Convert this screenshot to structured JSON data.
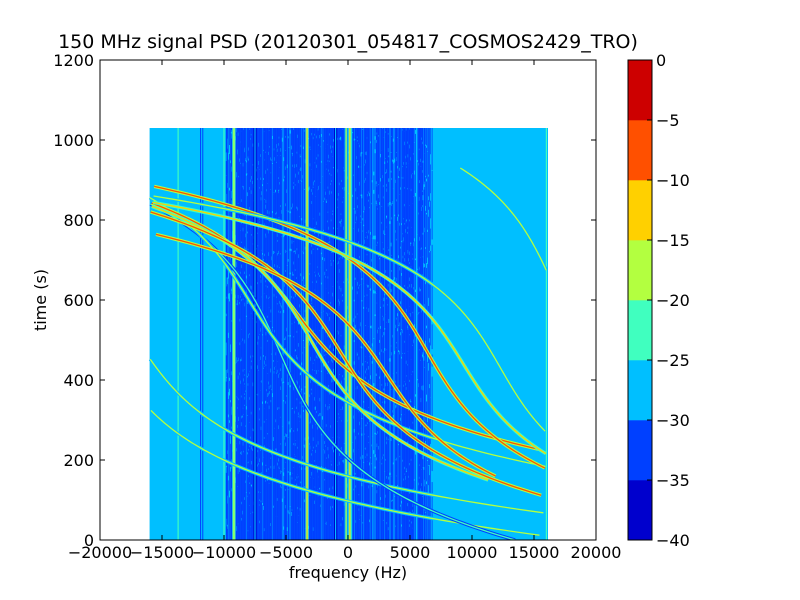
{
  "chart_data": {
    "type": "heatmap",
    "title": "150 MHz signal PSD (20120301_054817_COSMOS2429_TRO)",
    "xlabel": "frequency (Hz)",
    "ylabel": "time (s)",
    "xlim": [
      -20000,
      20000
    ],
    "ylim": [
      0,
      1200
    ],
    "xticks": [
      -20000,
      -15000,
      -10000,
      -5000,
      0,
      5000,
      10000,
      15000,
      20000
    ],
    "xtick_labels": [
      "−20000",
      "−15000",
      "−10000",
      "−5000",
      "0",
      "5000",
      "10000",
      "15000",
      "20000"
    ],
    "yticks": [
      0,
      200,
      400,
      600,
      800,
      1000,
      1200
    ],
    "ytick_labels": [
      "0",
      "200",
      "400",
      "600",
      "800",
      "1000",
      "1200"
    ],
    "data_extent": {
      "x": [
        -16000,
        16000
      ],
      "y": [
        0,
        1030
      ]
    },
    "background_level_db": -28,
    "noise_floor_region": {
      "x": [
        -10000,
        7000
      ],
      "level_db": -33
    },
    "colorbar": {
      "levels": [
        -40,
        -35,
        -30,
        -25,
        -20,
        -15,
        -10,
        -5,
        0
      ],
      "tick_labels": [
        "−40",
        "−35",
        "−30",
        "−25",
        "−20",
        "−15",
        "−10",
        "−5",
        "0"
      ],
      "colors": [
        "#0000cd",
        "#0040ff",
        "#00bfff",
        "#40ffbf",
        "#b3ff40",
        "#ffd000",
        "#ff5000",
        "#cd0000"
      ]
    },
    "vertical_lines": [
      {
        "x": -13700,
        "peak_db": -22
      },
      {
        "x": -11800,
        "peak_db": -28
      },
      {
        "x": -10000,
        "peak_db": -22
      },
      {
        "x": -9200,
        "peak_db": -18
      },
      {
        "x": -7500,
        "peak_db": -30
      },
      {
        "x": -3300,
        "peak_db": -15
      },
      {
        "x": -1000,
        "peak_db": -30
      },
      {
        "x": -150,
        "peak_db": -20
      },
      {
        "x": 150,
        "peak_db": -15
      },
      {
        "x": 16000,
        "peak_db": -22
      }
    ],
    "tracks": [
      {
        "center_t": 520,
        "center_f": -20000,
        "a": 2400,
        "s": 150,
        "peak_db": -20,
        "tmin": 0,
        "tmax": 1030
      },
      {
        "center_t": 500,
        "center_f": -17000,
        "a": 3000,
        "s": 140,
        "peak_db": -20,
        "tmin": 0,
        "tmax": 1030
      },
      {
        "center_t": 470,
        "center_f": -5500,
        "a": 2400,
        "s": 170,
        "peak_db": -22,
        "tmin": 0,
        "tmax": 1030
      },
      {
        "center_t": 600,
        "center_f": -8000,
        "a": 3000,
        "s": 150,
        "peak_db": -18,
        "tmin": 0,
        "tmax": 1030
      },
      {
        "center_t": 570,
        "center_f": -4200,
        "a": 3400,
        "s": 140,
        "peak_db": -8,
        "tmin": 150,
        "tmax": 1030
      },
      {
        "center_t": 500,
        "center_f": -3000,
        "a": 2800,
        "s": 150,
        "peak_db": -14,
        "tmin": 150,
        "tmax": 1030
      },
      {
        "center_t": 470,
        "center_f": -600,
        "a": 3000,
        "s": 150,
        "peak_db": -8,
        "tmin": 100,
        "tmax": 1030
      },
      {
        "center_t": 410,
        "center_f": 3200,
        "a": 3000,
        "s": 140,
        "peak_db": -8,
        "tmin": 160,
        "tmax": 950
      },
      {
        "center_t": 470,
        "center_f": 6400,
        "a": 2800,
        "s": 150,
        "peak_db": -8,
        "tmin": 120,
        "tmax": 1030
      },
      {
        "center_t": 440,
        "center_f": 9300,
        "a": 2800,
        "s": 140,
        "peak_db": -15,
        "tmin": 160,
        "tmax": 940
      },
      {
        "center_t": 430,
        "center_f": 12300,
        "a": 2600,
        "s": 140,
        "peak_db": -20,
        "tmin": 160,
        "tmax": 900
      },
      {
        "center_t": 640,
        "center_f": 16500,
        "a": 2200,
        "s": 150,
        "peak_db": -20,
        "tmin": 550,
        "tmax": 930
      }
    ]
  }
}
